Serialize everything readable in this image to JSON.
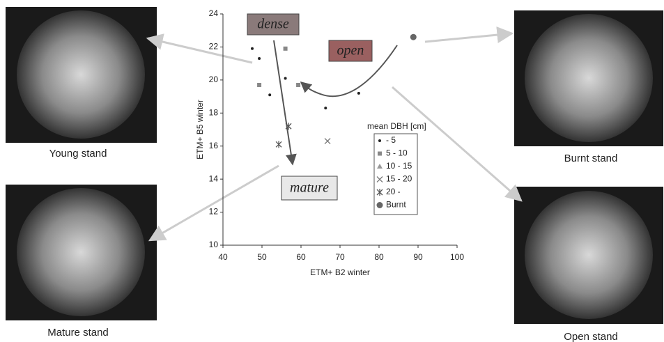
{
  "chart_data": {
    "type": "scatter",
    "x_label": "ETM+ B2 winter",
    "y_label": "ETM+ B5 winter",
    "xlim": [
      40,
      100
    ],
    "xticks": [
      40,
      50,
      60,
      70,
      80,
      90,
      100
    ],
    "ylim": [
      10,
      24
    ],
    "yticks": [
      10,
      12,
      14,
      16,
      18,
      20,
      22,
      24
    ],
    "legend_title": "mean DBH [cm]",
    "series": [
      {
        "name": "- 5",
        "marker": "dot",
        "color": "#222222",
        "x": [
          47.5,
          49.3,
          52,
          56,
          66.3,
          74.8
        ],
        "values": [
          21.9,
          21.3,
          19.1,
          20.1,
          18.3,
          19.2
        ]
      },
      {
        "name": "5 - 10",
        "marker": "square",
        "color": "#888888",
        "x": [
          49.3,
          56,
          59.3
        ],
        "values": [
          19.7,
          21.9,
          19.7
        ]
      },
      {
        "name": "10 - 15",
        "marker": "triangle",
        "color": "#999999",
        "x": [],
        "values": []
      },
      {
        "name": "15 - 20",
        "marker": "cross",
        "color": "#777777",
        "x": [
          66.8
        ],
        "values": [
          16.3
        ]
      },
      {
        "name": "20 -",
        "marker": "asterisk",
        "color": "#555555",
        "x": [
          54.3,
          56.8
        ],
        "values": [
          16.1,
          17.2
        ]
      },
      {
        "name": "Burnt",
        "marker": "circle",
        "color": "#666666",
        "x": [
          88.8
        ],
        "values": [
          22.6
        ]
      }
    ],
    "annotations": [
      {
        "text": "dense",
        "color": "#8a7a7a"
      },
      {
        "text": "open",
        "color": "#9a6060"
      },
      {
        "text": "mature",
        "color": "#e8e8e8"
      }
    ]
  },
  "photos": [
    {
      "caption": "Young stand"
    },
    {
      "caption": "Mature stand"
    },
    {
      "caption": "Burnt stand"
    },
    {
      "caption": "Open stand"
    }
  ]
}
